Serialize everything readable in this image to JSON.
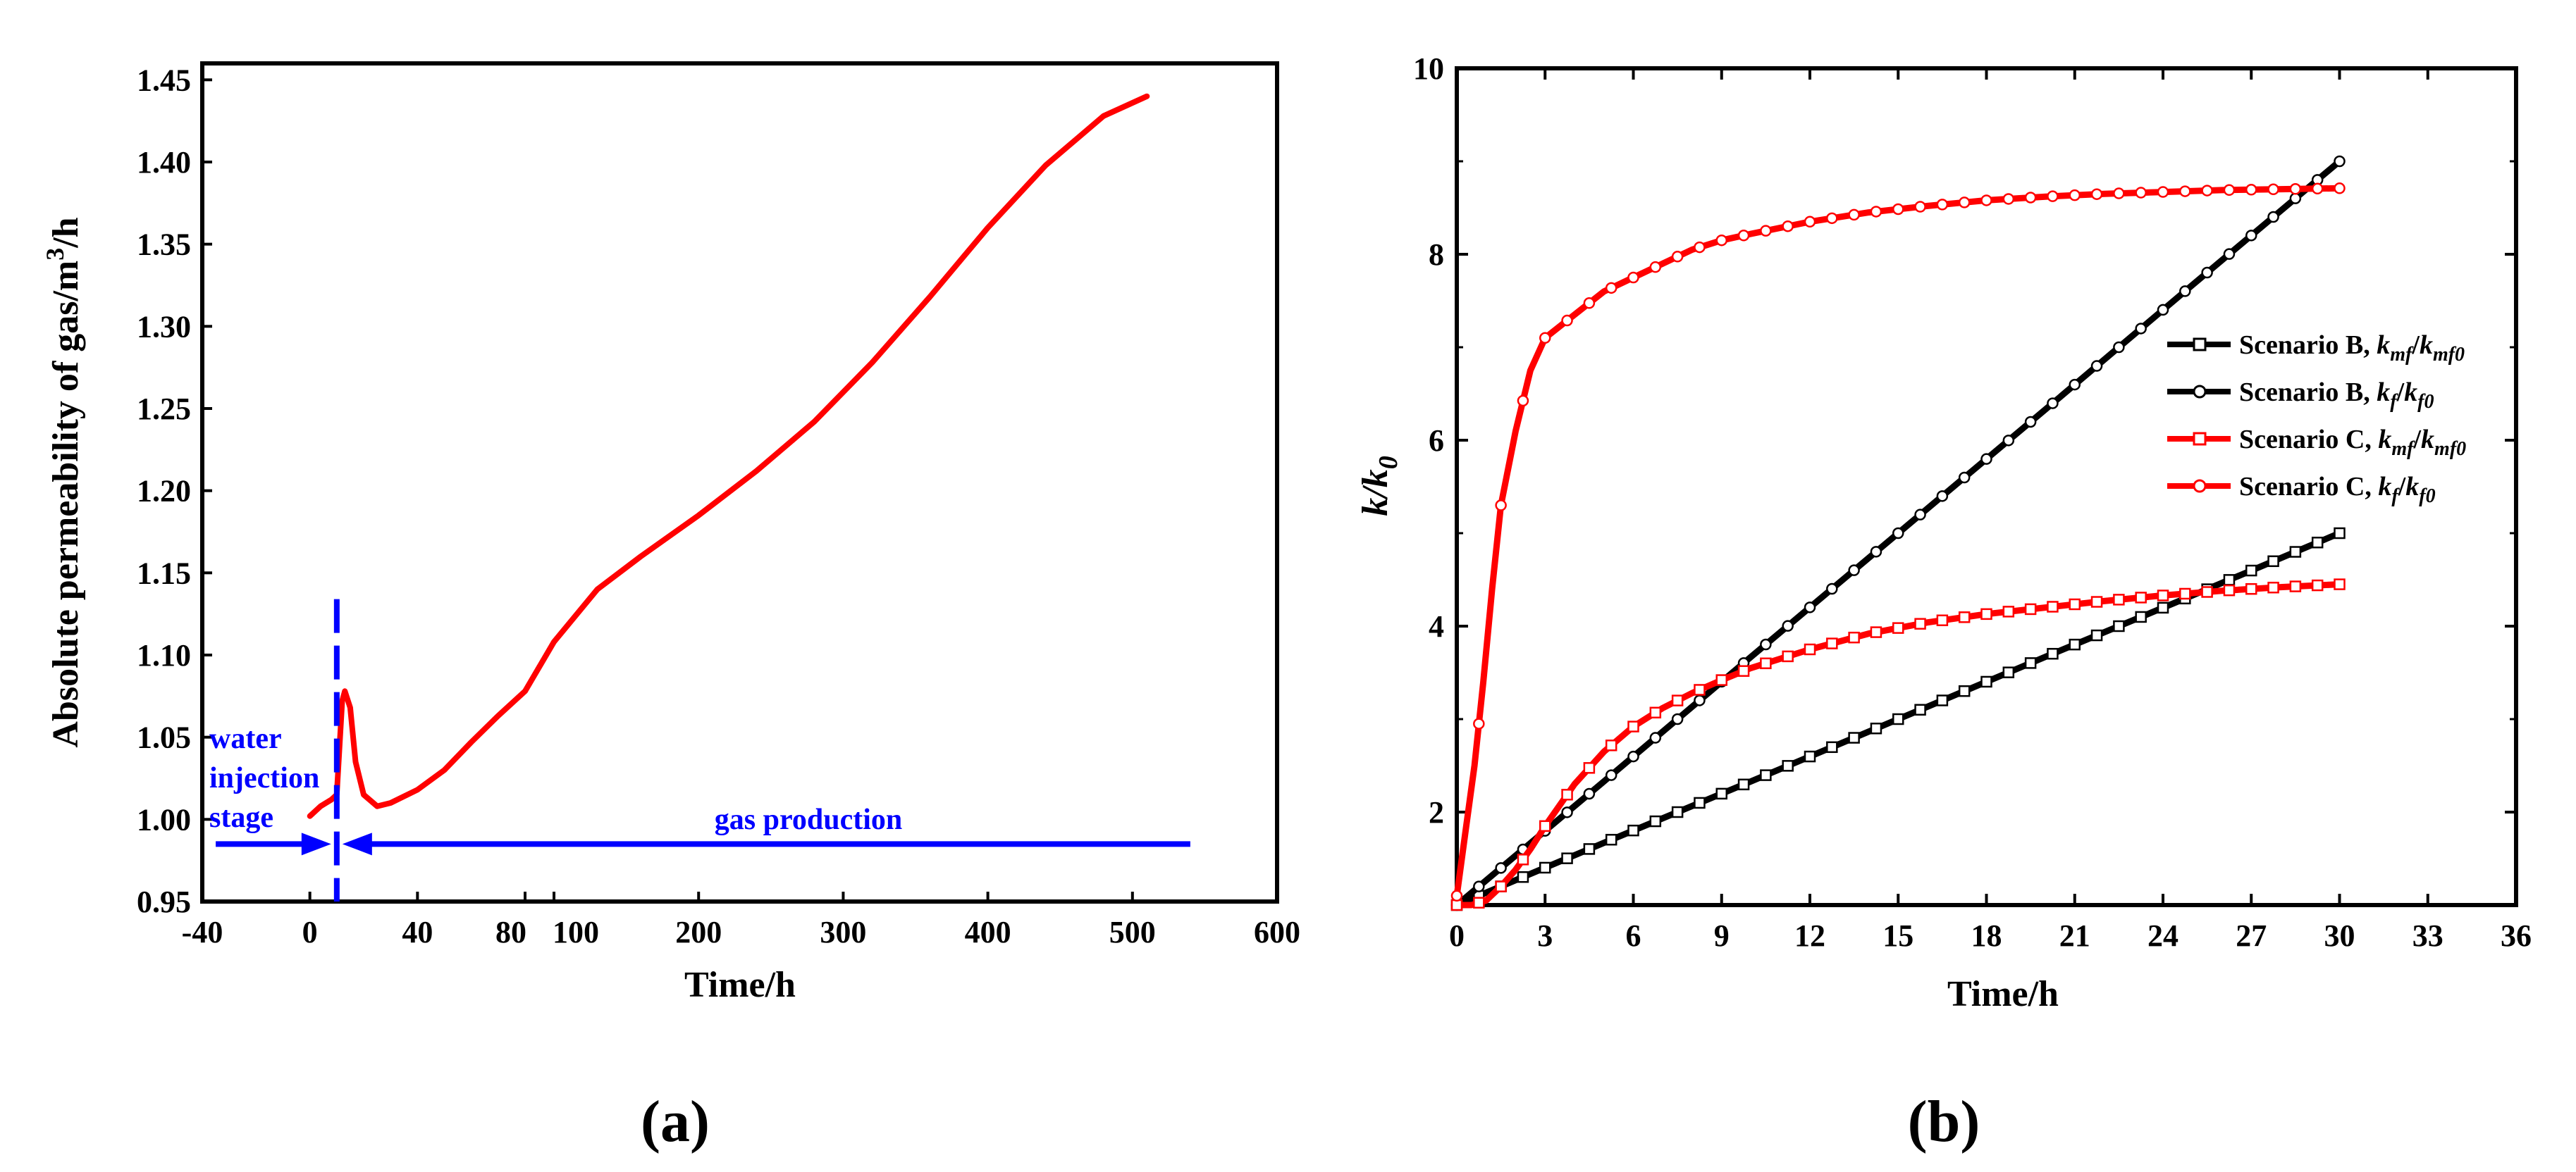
{
  "colors": {
    "red": "#ff0000",
    "black": "#000000",
    "blue": "#0000ff",
    "axis": "#000000"
  },
  "chart_data": [
    {
      "panel_label": "(a)",
      "type": "line",
      "title": "",
      "xlabel": "Time/h",
      "ylabel": "Absolute permeability of gas/m",
      "ylabel_sup": "3",
      "ylabel_end": "/h",
      "xlim": [
        -40,
        600
      ],
      "ylim": [
        0.95,
        1.46
      ],
      "x_segments": [
        {
          "data": [
            -40,
            80
          ],
          "ticks": [
            -40,
            0,
            40,
            80
          ]
        },
        {
          "data": [
            80,
            600
          ],
          "ticks": [
            100,
            200,
            300,
            400,
            500,
            600
          ]
        }
      ],
      "x_tick_labels": [
        "-40",
        "0",
        "40",
        "80",
        "100",
        "200",
        "300",
        "400",
        "500",
        "600"
      ],
      "yticks": [
        0.95,
        1.0,
        1.05,
        1.1,
        1.15,
        1.2,
        1.25,
        1.3,
        1.35,
        1.4,
        1.45
      ],
      "y_tick_labels": [
        "0.95",
        "1.00",
        "1.05",
        "1.10",
        "1.15",
        "1.20",
        "1.25",
        "1.30",
        "1.35",
        "1.40",
        "1.45"
      ],
      "series": [
        {
          "name": "absolute permeability",
          "color": "#ff0000",
          "x": [
            0,
            4,
            8,
            10,
            12,
            13,
            15,
            17,
            20,
            25,
            30,
            40,
            50,
            60,
            70,
            80,
            100,
            130,
            160,
            200,
            240,
            280,
            320,
            360,
            400,
            440,
            480,
            510
          ],
          "y": [
            1.002,
            1.008,
            1.012,
            1.015,
            1.072,
            1.078,
            1.068,
            1.035,
            1.015,
            1.008,
            1.01,
            1.018,
            1.03,
            1.047,
            1.063,
            1.078,
            1.108,
            1.14,
            1.16,
            1.185,
            1.212,
            1.242,
            1.278,
            1.318,
            1.36,
            1.398,
            1.428,
            1.44
          ]
        }
      ],
      "annotations": {
        "water_injection": [
          "water",
          "injection",
          "stage"
        ],
        "gas_production": "gas production",
        "divider_x": 10,
        "arrow_y": 0.985,
        "left_arrow_x": [
          -35,
          10
        ],
        "right_arrow_x": [
          10,
          540
        ],
        "divider_y_range": [
          0.95,
          1.134
        ]
      }
    },
    {
      "panel_label": "(b)",
      "type": "line",
      "title": "",
      "xlabel": "Time/h",
      "ylabel": "k/k",
      "ylabel_sub": "0",
      "xlim": [
        0,
        36
      ],
      "ylim": [
        1,
        10
      ],
      "xticks": [
        0,
        3,
        6,
        9,
        12,
        15,
        18,
        21,
        24,
        27,
        30,
        33,
        36
      ],
      "x_tick_labels": [
        "0",
        "3",
        "6",
        "9",
        "12",
        "15",
        "18",
        "21",
        "24",
        "27",
        "30",
        "33",
        "36"
      ],
      "yticks": [
        2,
        4,
        6,
        8,
        10
      ],
      "y_tick_labels": [
        "2",
        "4",
        "6",
        "8",
        "10"
      ],
      "legend_position": "right",
      "series": [
        {
          "name": "Scenario B, ",
          "name_parts": [
            "k",
            "mf",
            "/",
            "k",
            "mf0"
          ],
          "color": "#000000",
          "marker": "square",
          "x": [
            0,
            5,
            10,
            15,
            20,
            25,
            30
          ],
          "y": [
            1.0,
            1.67,
            2.33,
            3.0,
            3.67,
            4.33,
            5.0
          ]
        },
        {
          "name": "Scenario B, ",
          "name_parts": [
            "k",
            "f",
            "/",
            "k",
            "f0"
          ],
          "color": "#000000",
          "marker": "circle",
          "x": [
            0,
            5,
            10,
            15,
            20,
            25,
            30
          ],
          "y": [
            1.0,
            2.33,
            3.67,
            5.0,
            6.33,
            7.67,
            9.0
          ]
        },
        {
          "name": "Scenario C, ",
          "name_parts": [
            "k",
            "mf",
            "/",
            "k",
            "mf0"
          ],
          "color": "#ff0000",
          "marker": "square",
          "x": [
            0,
            0.5,
            1,
            1.5,
            2,
            2.5,
            3,
            4,
            5,
            6,
            7,
            8,
            9,
            10,
            12,
            14,
            16,
            18,
            20,
            22,
            24,
            26,
            28,
            30
          ],
          "y": [
            1.0,
            1.0,
            1.05,
            1.2,
            1.38,
            1.6,
            1.85,
            2.3,
            2.65,
            2.92,
            3.12,
            3.28,
            3.42,
            3.55,
            3.75,
            3.92,
            4.04,
            4.13,
            4.2,
            4.27,
            4.33,
            4.38,
            4.42,
            4.45
          ]
        },
        {
          "name": "Scenario C, ",
          "name_parts": [
            "k",
            "f",
            "/",
            "k",
            "f0"
          ],
          "color": "#ff0000",
          "marker": "circle",
          "x": [
            0,
            0.3,
            0.6,
            0.9,
            1.2,
            1.5,
            2,
            2.5,
            3,
            4,
            5,
            6,
            7,
            8,
            9,
            10,
            12,
            14,
            16,
            18,
            20,
            22,
            24,
            26,
            28,
            30
          ],
          "y": [
            1.1,
            1.8,
            2.5,
            3.4,
            4.4,
            5.3,
            6.1,
            6.75,
            7.1,
            7.35,
            7.6,
            7.75,
            7.9,
            8.05,
            8.15,
            8.22,
            8.35,
            8.45,
            8.52,
            8.58,
            8.62,
            8.65,
            8.67,
            8.69,
            8.7,
            8.71
          ]
        }
      ]
    }
  ]
}
